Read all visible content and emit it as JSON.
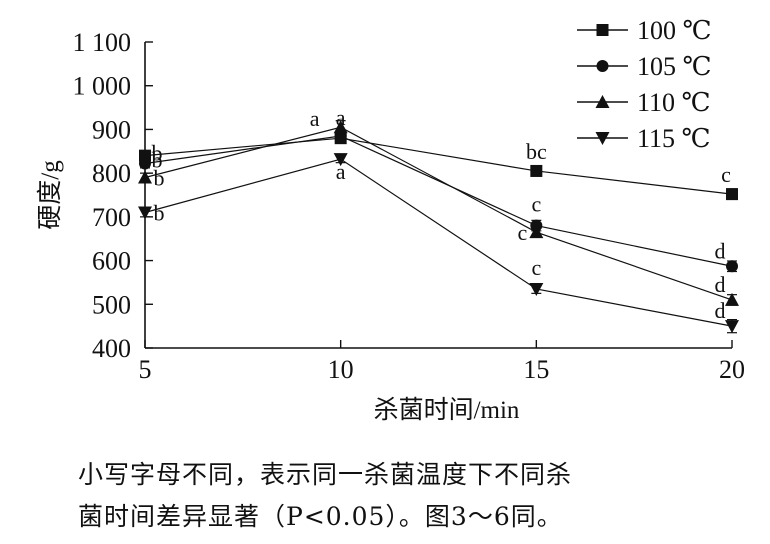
{
  "chart_data": {
    "type": "line",
    "xlabel": "杀菌时间/min",
    "ylabel": "硬度/g",
    "x": [
      5,
      10,
      15,
      20
    ],
    "xlim": [
      5,
      20
    ],
    "ylim": [
      400,
      1100
    ],
    "xticks": [
      "5",
      "10",
      "15",
      "20"
    ],
    "yticks": [
      "400",
      "500",
      "600",
      "700",
      "800",
      "900",
      "1 000",
      "1 100"
    ],
    "grid": false,
    "legend_position": "top-right",
    "series": [
      {
        "name": "100 ℃",
        "marker": "square",
        "values": [
          840,
          880,
          805,
          752
        ],
        "errors": [
          10,
          10,
          10,
          12
        ],
        "labels": [
          "b",
          "a",
          "bc",
          "c"
        ]
      },
      {
        "name": "105 ℃",
        "marker": "circle",
        "values": [
          822,
          885,
          680,
          587
        ],
        "errors": [
          10,
          10,
          12,
          12
        ],
        "labels": [
          "b",
          "",
          "c",
          "d"
        ]
      },
      {
        "name": "110 ℃",
        "marker": "triangle-up",
        "values": [
          790,
          905,
          665,
          510
        ],
        "errors": [
          10,
          15,
          10,
          12
        ],
        "labels": [
          "b",
          "a",
          "c",
          "d"
        ]
      },
      {
        "name": "115 ℃",
        "marker": "triangle-down",
        "values": [
          710,
          832,
          535,
          450
        ],
        "errors": [
          10,
          8,
          10,
          15
        ],
        "labels": [
          "b",
          "a",
          "c",
          "d"
        ]
      }
    ]
  },
  "caption": {
    "line1": "小写字母不同，表示同一杀菌温度下不同杀",
    "line2": "菌时间差异显著（P<0.05）。图3～6同。"
  }
}
